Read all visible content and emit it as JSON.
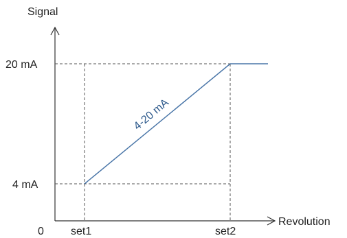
{
  "chart_data": {
    "type": "line",
    "ylabel": "Signal",
    "xlabel": "Revolution",
    "origin_label": "0",
    "x_ticks": [
      "set1",
      "set2"
    ],
    "y_ticks": [
      "4 mA",
      "20 mA"
    ],
    "series": [
      {
        "name": "4-20 mA",
        "points": [
          {
            "x": "set1",
            "y": 4
          },
          {
            "x": "set2",
            "y": 20
          },
          {
            "x": "beyond set2",
            "y": 20
          }
        ]
      }
    ],
    "reference_lines": "dashed",
    "colors": {
      "series": "#4A76A8",
      "series_label": "#2E5A8C",
      "axis": "#333333",
      "guide": "#555555"
    }
  }
}
